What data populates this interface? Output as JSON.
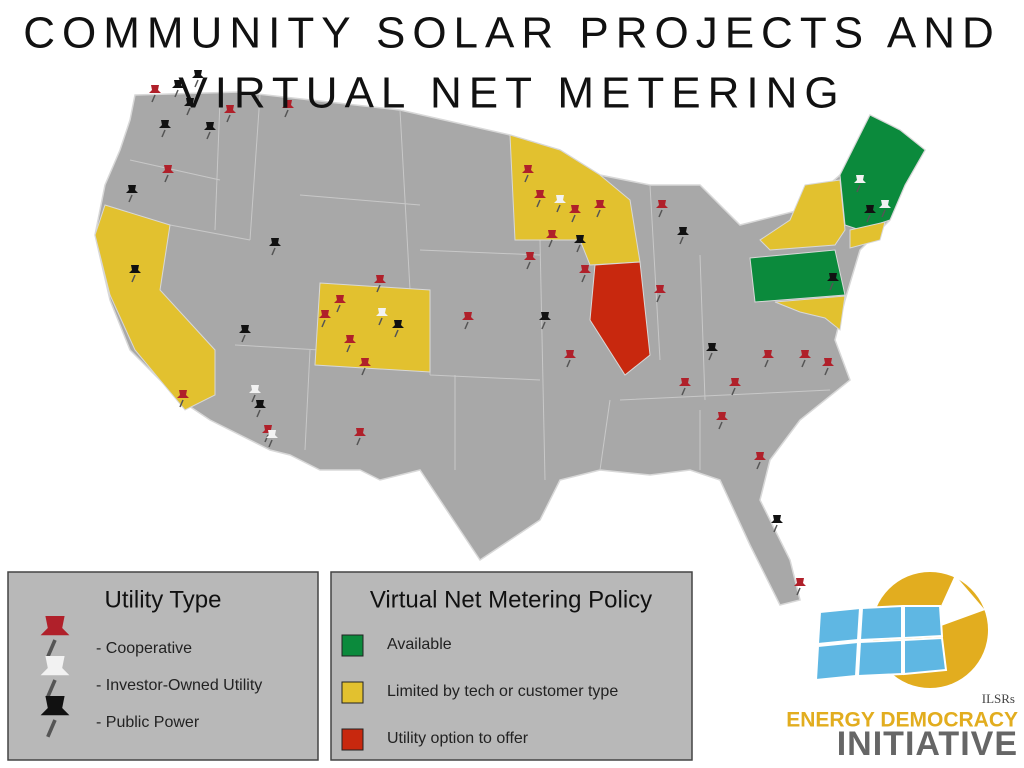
{
  "title": {
    "lines": [
      "COMMUNITY SOLAR PROJECTS AND",
      "VIRTUAL NET METERING"
    ]
  },
  "utility_legend": {
    "title": "Utility Type",
    "items": [
      "- Cooperative",
      "- Investor-Owned Utility",
      "- Public Power"
    ]
  },
  "policy_legend": {
    "title": "Virtual Net Metering Policy",
    "items": [
      {
        "label": "Available",
        "color": "#0b8a3c"
      },
      {
        "label": "Limited by tech or customer type",
        "color": "#e2c12f"
      },
      {
        "label": "Utility option to offer",
        "color": "#c8280e"
      }
    ]
  },
  "logo": {
    "org": "ILSRs",
    "line1": "ENERGY DEMOCRACY",
    "line2": "INITIATIVE"
  }
}
